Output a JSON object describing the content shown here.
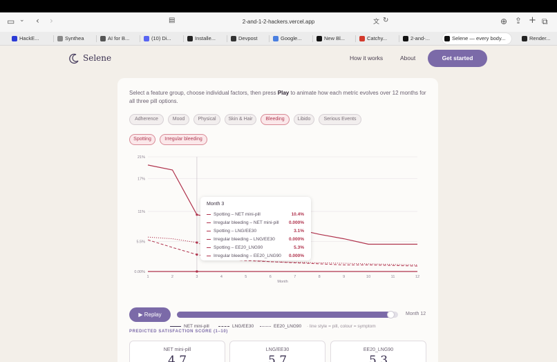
{
  "browser": {
    "url": "2-and-1-2-hackers.vercel.app",
    "tabs": [
      {
        "label": "HackE...",
        "color": "#2b3bd6"
      },
      {
        "label": "Synthea",
        "color": "#888888"
      },
      {
        "label": "AI for B...",
        "color": "#555555"
      },
      {
        "label": "(10) Di...",
        "color": "#5865f2"
      },
      {
        "label": "Installe...",
        "color": "#222222"
      },
      {
        "label": "Devpost",
        "color": "#333333"
      },
      {
        "label": "Google...",
        "color": "#4a7fe0"
      },
      {
        "label": "New Bl...",
        "color": "#111111"
      },
      {
        "label": "Catchy...",
        "color": "#d33a2c"
      },
      {
        "label": "2-and-...",
        "color": "#111111"
      },
      {
        "label": "Selene — every body...",
        "color": "#111111"
      },
      {
        "label": "Render...",
        "color": "#222222"
      }
    ]
  },
  "nav": {
    "brand": "Selene",
    "links": [
      "How it works",
      "About"
    ],
    "cta": "Get started"
  },
  "intro": {
    "before": "Select a feature group, choose individual factors, then press ",
    "bold": "Play",
    "after": " to animate how each metric evolves over 12 months for all three pill options."
  },
  "groups": [
    {
      "label": "Adherence",
      "selected": false
    },
    {
      "label": "Mood",
      "selected": false
    },
    {
      "label": "Physical",
      "selected": false
    },
    {
      "label": "Skin & Hair",
      "selected": false
    },
    {
      "label": "Bleeding",
      "selected": true
    },
    {
      "label": "Libido",
      "selected": false
    },
    {
      "label": "Serious Events",
      "selected": false
    }
  ],
  "factors": [
    {
      "label": "Spotting",
      "selected": true
    },
    {
      "label": "Irregular bleeding",
      "selected": true
    }
  ],
  "chart_data": {
    "type": "line",
    "xlabel": "Month",
    "ylabel": "",
    "x": [
      1,
      2,
      3,
      4,
      5,
      6,
      7,
      8,
      9,
      10,
      11,
      12
    ],
    "xlim": [
      1,
      12
    ],
    "ylim": [
      0,
      21
    ],
    "yticks": [
      "0.00%",
      "5.5%",
      "11%",
      "17%",
      "21%"
    ],
    "ytick_values": [
      0,
      5.5,
      11,
      17,
      21
    ],
    "grid": true,
    "series": [
      {
        "name": "Spotting – NET mini-pill",
        "dash": "solid",
        "values": [
          19.5,
          18.6,
          10.4,
          9.6,
          8.8,
          8.4,
          7.8,
          6.8,
          6.0,
          5.0,
          5.0,
          5.0
        ]
      },
      {
        "name": "Irregular bleeding – NET mini-pill",
        "dash": "solid",
        "values": [
          0,
          0,
          0,
          0,
          0,
          0,
          0,
          0,
          0,
          0,
          0,
          0
        ]
      },
      {
        "name": "Spotting – LNG/EE30",
        "dash": "dashed",
        "values": [
          5.8,
          4.4,
          3.1,
          2.3,
          2.0,
          1.8,
          1.6,
          1.4,
          1.2,
          1.2,
          1.1,
          1.0
        ]
      },
      {
        "name": "Irregular bleeding – LNG/EE30",
        "dash": "dashed",
        "values": [
          0,
          0,
          0,
          0,
          0,
          0,
          0,
          0,
          0,
          0,
          0,
          0
        ]
      },
      {
        "name": "Spotting – EE20_LNG90",
        "dash": "dotted",
        "values": [
          6.3,
          6.0,
          5.3,
          3.4,
          2.2,
          1.8,
          1.7,
          1.6,
          1.5,
          1.4,
          1.3,
          1.2
        ]
      },
      {
        "name": "Irregular bleeding – EE20_LNG90",
        "dash": "dotted",
        "values": [
          0,
          0,
          0,
          0,
          0,
          0,
          0,
          0,
          0,
          0,
          0,
          0
        ]
      }
    ],
    "line_color": "#b0334d",
    "cursor_month": 3
  },
  "tooltip": {
    "title": "Month 3",
    "rows": [
      {
        "label": "Spotting – NET mini-pill",
        "value": "10.4%"
      },
      {
        "label": "Irregular bleeding – NET mini-pill",
        "value": "0.000%"
      },
      {
        "label": "Spotting – LNG/EE30",
        "value": "3.1%"
      },
      {
        "label": "Irregular bleeding – LNG/EE30",
        "value": "0.000%"
      },
      {
        "label": "Spotting – EE20_LNG90",
        "value": "5.3%"
      },
      {
        "label": "Irregular bleeding – EE20_LNG90",
        "value": "0.000%"
      }
    ]
  },
  "legend": {
    "net": "NET mini-pill",
    "lng": "LNG/EE30",
    "ee": "EE20_LNG90",
    "note": "line style = pill, colour = symptom"
  },
  "player": {
    "replay": "Replay",
    "progress": 0.97,
    "month_label": "Month 12"
  },
  "scores": {
    "heading": "PREDICTED SATISFACTION SCORE (1–10)",
    "cards": [
      {
        "name": "NET mini-pill",
        "value": "4.7"
      },
      {
        "name": "LNG/EE30",
        "value": "5.7"
      },
      {
        "name": "EE20_LNG90",
        "value": "5.3"
      }
    ]
  },
  "colors": {
    "accent": "#7b6aa8",
    "symptom": "#b0334d",
    "background": "#f3efe9"
  }
}
